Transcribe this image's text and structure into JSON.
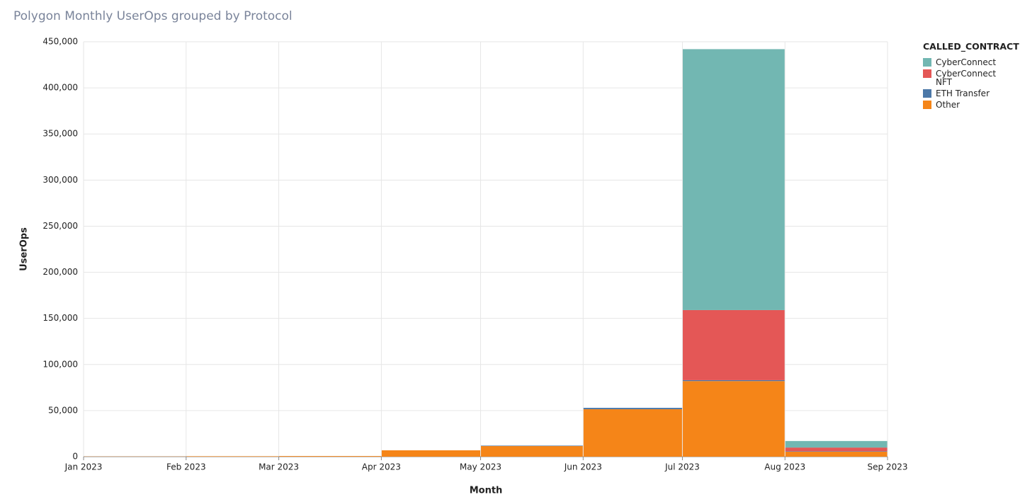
{
  "chart_data": {
    "type": "stacked_bar",
    "title": "Polygon Monthly UserOps grouped by Protocol",
    "x_label": "Month",
    "y_label": "UserOps",
    "legend_title": "CALLED_CONTRACT",
    "x": [
      "2023-01-01",
      "2023-02-01",
      "2023-03-01",
      "2023-04-01",
      "2023-05-01",
      "2023-06-01",
      "2023-07-01",
      "2023-08-01"
    ],
    "series": [
      {
        "name": "CyberConnect",
        "color": "#72b7b2",
        "values": [
          0,
          0,
          0,
          0,
          0,
          0,
          283000,
          7100
        ]
      },
      {
        "name": "CyberConnect NFT",
        "color": "#e45756",
        "values": [
          0,
          0,
          0,
          0,
          0,
          0,
          76000,
          4000
        ]
      },
      {
        "name": "ETH Transfer",
        "color": "#4c78a8",
        "values": [
          0,
          0,
          0,
          0,
          500,
          1500,
          1000,
          500
        ]
      },
      {
        "name": "Other",
        "color": "#f58518",
        "values": [
          200,
          500,
          700,
          6900,
          11500,
          51500,
          82000,
          5400
        ]
      }
    ],
    "xlim": [
      "2023-01-01",
      "2023-09-01"
    ],
    "xticks": [
      {
        "value": "2023-01-01",
        "label": "Jan 2023"
      },
      {
        "value": "2023-02-01",
        "label": "Feb 2023"
      },
      {
        "value": "2023-03-01",
        "label": "Mar 2023"
      },
      {
        "value": "2023-04-01",
        "label": "Apr 2023"
      },
      {
        "value": "2023-05-01",
        "label": "May 2023"
      },
      {
        "value": "2023-06-01",
        "label": "Jun 2023"
      },
      {
        "value": "2023-07-01",
        "label": "Jul 2023"
      },
      {
        "value": "2023-08-01",
        "label": "Aug 2023"
      },
      {
        "value": "2023-09-01",
        "label": "Sep 2023"
      }
    ],
    "ylim": [
      0,
      450000
    ],
    "yticks": [
      0,
      {
        "value": 50000,
        "label": "50,000"
      },
      {
        "value": 100000,
        "label": "100,000"
      },
      {
        "value": 150000,
        "label": "150,000"
      },
      {
        "value": 200000,
        "label": "200,000"
      },
      {
        "value": 250000,
        "label": "250,000"
      },
      {
        "value": 300000,
        "label": "300,000"
      },
      {
        "value": 350000,
        "label": "350,000"
      },
      {
        "value": 400000,
        "label": "400,000"
      },
      {
        "value": 450000,
        "label": "450,000"
      }
    ],
    "grid": true
  }
}
